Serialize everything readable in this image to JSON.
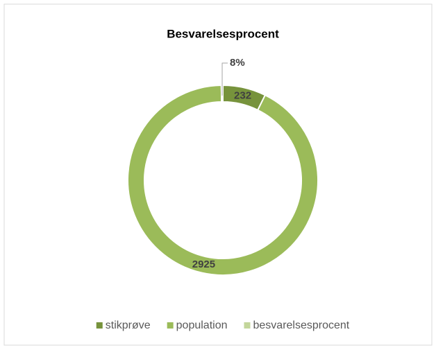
{
  "chart_data": {
    "type": "doughnut",
    "title": "Besvarelsesprocent",
    "categories": [
      "stikprøve",
      "population",
      "besvarelsesprocent"
    ],
    "values": [
      232,
      2925,
      8
    ],
    "value_labels": [
      "232",
      "2925",
      "8%"
    ],
    "colors": [
      "#77933c",
      "#9bbb59",
      "#c3d69b"
    ],
    "legend": "bottom"
  }
}
